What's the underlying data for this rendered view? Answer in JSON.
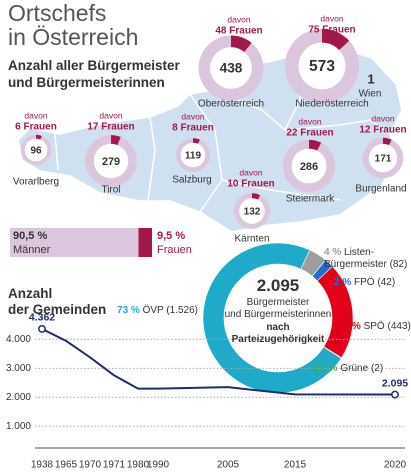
{
  "chart_data": [
    {
      "type": "map-donut",
      "title": "Ortschefs\nin Österreich",
      "subtitle": "Anzahl aller Bürgermeister\nund Bürgermeisterinnen",
      "note": "davon",
      "categories": [
        "Oberösterreich",
        "Niederösterreich",
        "Wien",
        "Vorarlberg",
        "Tirol",
        "Salzburg",
        "Steiermark",
        "Burgenland",
        "Kärnten"
      ],
      "values": [
        438,
        573,
        1,
        96,
        279,
        119,
        286,
        171,
        132
      ],
      "women": [
        48,
        75,
        null,
        6,
        17,
        8,
        22,
        12,
        10
      ],
      "women_labels": [
        "48 Frauen",
        "75 Frauen",
        null,
        "6 Frauen",
        "17 Frauen",
        "8 Frauen",
        "22 Frauen",
        "12 Frauen",
        "10 Frauen"
      ],
      "color": "#dcc6de",
      "women_color": "#a3174a"
    },
    {
      "type": "stacked-bar",
      "series": [
        {
          "name": "Männer",
          "color": "#dcc6de",
          "values": [
            90.5
          ],
          "value_labels": [
            "90,5 %"
          ]
        },
        {
          "name": "Frauen",
          "color": "#a3174a",
          "values": [
            9.5
          ],
          "value_labels": [
            "9,5 %"
          ]
        }
      ]
    },
    {
      "type": "donut",
      "total": 2095,
      "total_label": "2.095",
      "title": "Bürgermeister\nund Bürgermeisterinnen",
      "subtitle": "nach\nParteizugehörigkeit",
      "categories": [
        "Listen-\nBürgermeister",
        "FPÖ",
        "SPÖ",
        "Grüne",
        "ÖVP"
      ],
      "values": [
        4,
        2,
        21,
        0.1,
        73
      ],
      "value_labels": [
        "4 %",
        "2 %",
        "21 %",
        "0,1 %",
        "73 %"
      ],
      "counts": [
        82,
        42,
        443,
        2,
        1526
      ],
      "count_labels": [
        "(82)",
        "(42)",
        "(443)",
        "(2)",
        "(1.526)"
      ],
      "colors": [
        "#9d9d9d",
        "#1f6fd0",
        "#e2001a",
        "#3fae49",
        "#1eaac8"
      ]
    },
    {
      "type": "line",
      "title": "Anzahl\nder Gemeinden",
      "categories": [
        "1938",
        "1965",
        "1970",
        "1971",
        "1980",
        "1990",
        "2005",
        "2015",
        "2020"
      ],
      "values": [
        4362,
        3950,
        3380,
        2760,
        2300,
        2300,
        2350,
        2100,
        2095
      ],
      "value_labels": [
        "4.362",
        null,
        null,
        null,
        null,
        null,
        null,
        null,
        "2.095"
      ],
      "color": "#1f2d6b",
      "ylim": [
        250,
        4600
      ],
      "yticks": [
        {
          "value": 1000,
          "label": "1.000"
        },
        {
          "value": 2000,
          "label": "2.000"
        },
        {
          "value": 3000,
          "label": "3.000"
        },
        {
          "value": 4000,
          "label": "4.000"
        }
      ],
      "grid": true
    }
  ]
}
